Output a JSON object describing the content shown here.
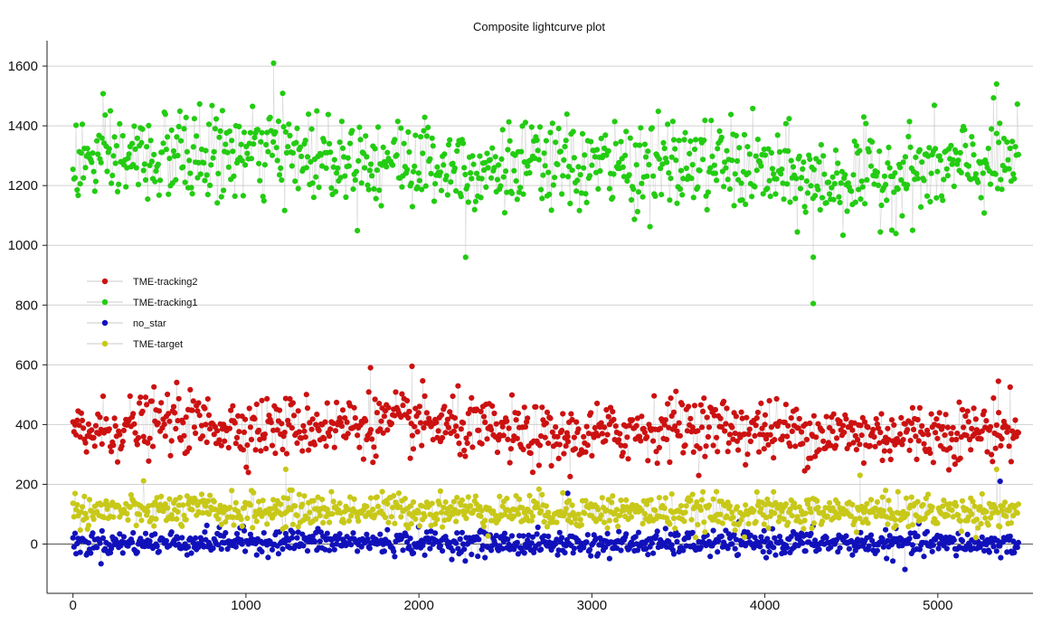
{
  "chart_data": {
    "type": "scatter",
    "title": "Composite lightcurve plot",
    "xlabel": "",
    "ylabel": "",
    "xlim": [
      -150,
      5550
    ],
    "ylim": [
      -165,
      1685
    ],
    "x_ticks": [
      0,
      1000,
      2000,
      3000,
      4000,
      5000
    ],
    "x_tick_labels": [
      "0",
      "1000",
      "2000",
      "3000",
      "4000",
      "5000"
    ],
    "y_ticks": [
      0,
      200,
      400,
      600,
      800,
      1000,
      1200,
      1400,
      1600
    ],
    "y_tick_labels": [
      "0",
      "200",
      "400",
      "600",
      "800",
      "1000",
      "1200",
      "1400",
      "1600"
    ],
    "grid": "horizontal",
    "legend_position": "left",
    "connecting_line_color": "#c8c8c8",
    "series": [
      {
        "name": "TME-tracking2",
        "color": "#cc1111",
        "x_range": [
          0,
          5470
        ],
        "mean": 385,
        "spread": 50,
        "trend": [
          [
            0,
            370
          ],
          [
            600,
            410
          ],
          [
            1000,
            390
          ],
          [
            2000,
            405
          ],
          [
            2800,
            350
          ],
          [
            3500,
            400
          ],
          [
            3900,
            385
          ],
          [
            4600,
            365
          ],
          [
            5470,
            385
          ]
        ],
        "values_sample": [
          [
            1720,
            590
          ],
          [
            1960,
            595
          ],
          [
            2860,
            360
          ],
          [
            4000,
            400
          ],
          [
            5350,
            545
          ]
        ]
      },
      {
        "name": "TME-tracking1",
        "color": "#22cc11",
        "x_range": [
          0,
          5470
        ],
        "mean": 1280,
        "spread": 75,
        "trend": [
          [
            0,
            1280
          ],
          [
            1200,
            1310
          ],
          [
            2500,
            1260
          ],
          [
            3800,
            1270
          ],
          [
            4300,
            1210
          ],
          [
            5470,
            1280
          ]
        ],
        "values_sample": [
          [
            1160,
            1610
          ],
          [
            4280,
            805
          ],
          [
            4280,
            960
          ],
          [
            2270,
            960
          ],
          [
            5340,
            1540
          ]
        ]
      },
      {
        "name": "no_star",
        "color": "#1111bb",
        "x_range": [
          0,
          5470
        ],
        "mean": 5,
        "spread": 20,
        "trend": [
          [
            0,
            0
          ],
          [
            1000,
            10
          ],
          [
            2000,
            5
          ],
          [
            3000,
            0
          ],
          [
            4000,
            5
          ],
          [
            5470,
            0
          ]
        ],
        "values_sample": [
          [
            4810,
            -85
          ],
          [
            5360,
            210
          ],
          [
            2860,
            170
          ]
        ]
      },
      {
        "name": "TME-target",
        "color": "#c8c819",
        "x_range": [
          0,
          5470
        ],
        "mean": 110,
        "spread": 28,
        "trend": [
          [
            0,
            110
          ],
          [
            2000,
            115
          ],
          [
            4000,
            105
          ],
          [
            5470,
            110
          ]
        ],
        "values_sample": [
          [
            1230,
            250
          ],
          [
            5340,
            250
          ],
          [
            4550,
            230
          ]
        ]
      }
    ]
  }
}
